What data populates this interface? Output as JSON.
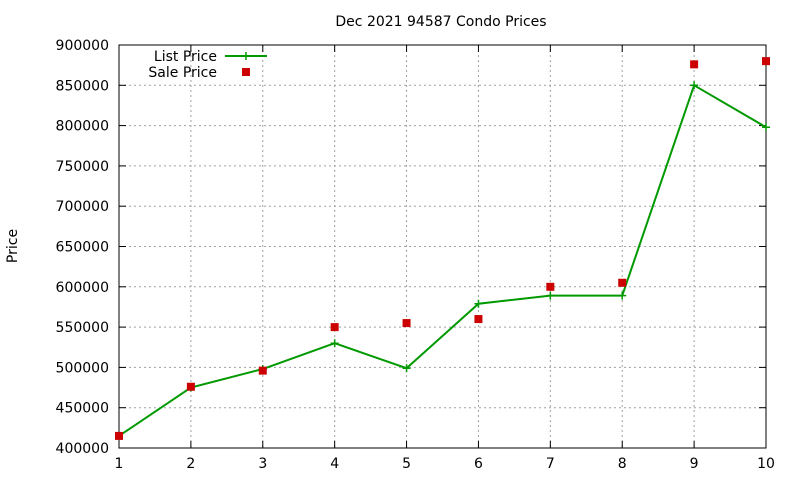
{
  "chart_data": {
    "type": "line",
    "title": "Dec 2021 94587 Condo Prices",
    "xlabel": "",
    "ylabel": "Price",
    "xlim": [
      1,
      10
    ],
    "ylim": [
      400000,
      900000
    ],
    "x_ticks": [
      1,
      2,
      3,
      4,
      5,
      6,
      7,
      8,
      9,
      10
    ],
    "y_ticks": [
      400000,
      450000,
      500000,
      550000,
      600000,
      650000,
      700000,
      750000,
      800000,
      850000,
      900000
    ],
    "grid": true,
    "legend_position": "top-left",
    "x": [
      1,
      2,
      3,
      4,
      5,
      6,
      7,
      8,
      9,
      10
    ],
    "series": [
      {
        "name": "List Price",
        "style": "line-with-plus-markers",
        "color": "#009900",
        "values": [
          415000,
          475000,
          498000,
          530000,
          499000,
          579000,
          589000,
          589000,
          850000,
          798000
        ]
      },
      {
        "name": "Sale Price",
        "style": "square-markers",
        "color": "#cc0000",
        "values": [
          415000,
          476000,
          496000,
          550000,
          555000,
          560000,
          600000,
          605000,
          876000,
          880000
        ]
      }
    ]
  }
}
